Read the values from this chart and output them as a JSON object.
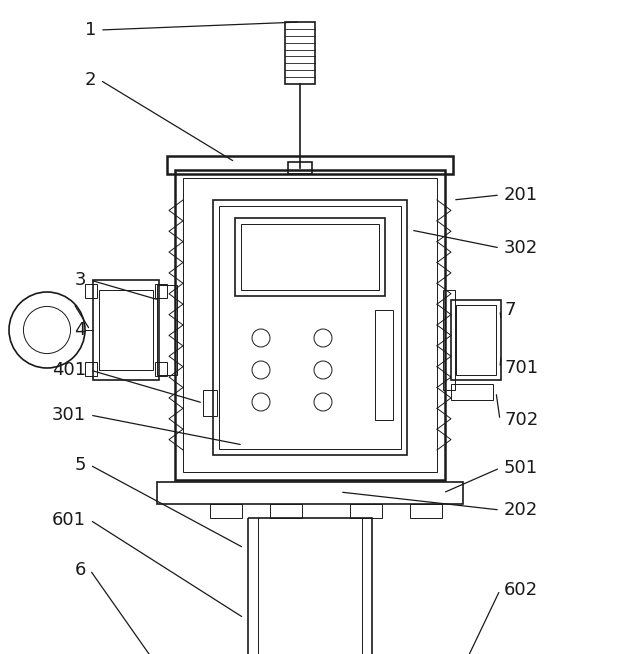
{
  "bg_color": "#ffffff",
  "line_color": "#1a1a1a",
  "lw_thick": 1.8,
  "lw_med": 1.2,
  "lw_thin": 0.7,
  "font_size": 13,
  "font_color": "#1a1a1a"
}
